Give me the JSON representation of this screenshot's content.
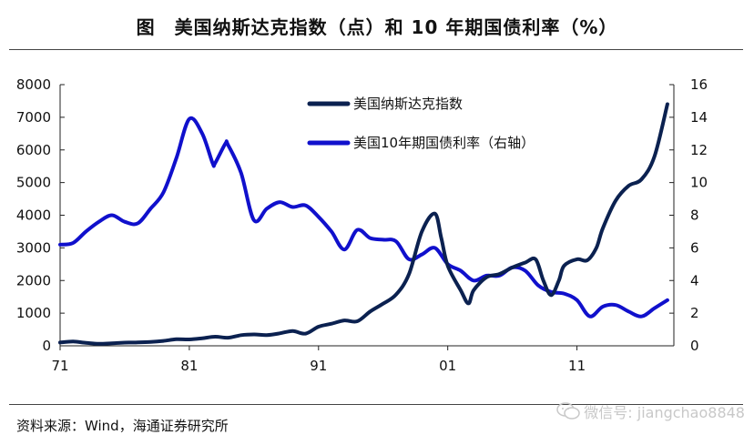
{
  "header": {
    "title": "图　美国纳斯达克指数（点）和 10 年期国债利率（%）"
  },
  "footer": {
    "source": "资料来源：Wind，海通证券研究所",
    "watermark": "微信号: jiangchao8848"
  },
  "colors": {
    "nasdaq": "#0b2150",
    "yield": "#1010cc",
    "axis": "#222222"
  },
  "chart_data": {
    "type": "line",
    "x_ticks": [
      "71",
      "81",
      "91",
      "01",
      "11"
    ],
    "x_range": [
      1971,
      2018.5
    ],
    "y_left": {
      "range": [
        0,
        8000
      ],
      "ticks": [
        "0",
        "1000",
        "2000",
        "3000",
        "4000",
        "5000",
        "6000",
        "7000",
        "8000"
      ]
    },
    "y_right": {
      "range": [
        0,
        16
      ],
      "ticks": [
        "0",
        "2",
        "4",
        "6",
        "8",
        "10",
        "12",
        "14",
        "16"
      ]
    },
    "legend_position": "top-center",
    "series": [
      {
        "name": "美国纳斯达克指数",
        "axis": "left",
        "color": "#0b2150",
        "points": [
          [
            1971,
            100
          ],
          [
            1972,
            130
          ],
          [
            1973,
            92
          ],
          [
            1974,
            60
          ],
          [
            1975,
            78
          ],
          [
            1976,
            97
          ],
          [
            1977,
            105
          ],
          [
            1978,
            118
          ],
          [
            1979,
            150
          ],
          [
            1980,
            200
          ],
          [
            1981,
            195
          ],
          [
            1982,
            232
          ],
          [
            1983,
            279
          ],
          [
            1984,
            247
          ],
          [
            1985,
            325
          ],
          [
            1986,
            349
          ],
          [
            1987,
            330
          ],
          [
            1988,
            381
          ],
          [
            1989,
            454
          ],
          [
            1990,
            374
          ],
          [
            1991,
            586
          ],
          [
            1992,
            677
          ],
          [
            1993,
            777
          ],
          [
            1994,
            752
          ],
          [
            1995,
            1052
          ],
          [
            1996,
            1291
          ],
          [
            1997,
            1570
          ],
          [
            1998,
            2193
          ],
          [
            1999,
            3500
          ],
          [
            2000,
            4050
          ],
          [
            2000.5,
            3300
          ],
          [
            2001,
            2450
          ],
          [
            2002,
            1700
          ],
          [
            2002.6,
            1300
          ],
          [
            2003,
            1700
          ],
          [
            2004,
            2100
          ],
          [
            2005,
            2200
          ],
          [
            2006,
            2400
          ],
          [
            2007,
            2550
          ],
          [
            2007.8,
            2650
          ],
          [
            2008.4,
            2000
          ],
          [
            2009,
            1550
          ],
          [
            2009.6,
            2000
          ],
          [
            2010,
            2450
          ],
          [
            2011,
            2650
          ],
          [
            2011.8,
            2620
          ],
          [
            2012.5,
            3000
          ],
          [
            2013,
            3600
          ],
          [
            2014,
            4450
          ],
          [
            2015,
            4900
          ],
          [
            2016,
            5100
          ],
          [
            2017,
            5800
          ],
          [
            2018,
            7400
          ]
        ]
      },
      {
        "name": "美国10年期国债利率（右轴）",
        "axis": "right",
        "color": "#1010cc",
        "points": [
          [
            1971,
            6.2
          ],
          [
            1972,
            6.3
          ],
          [
            1973,
            7.0
          ],
          [
            1974,
            7.6
          ],
          [
            1975,
            8.0
          ],
          [
            1976,
            7.6
          ],
          [
            1977,
            7.5
          ],
          [
            1978,
            8.4
          ],
          [
            1979,
            9.4
          ],
          [
            1980,
            11.5
          ],
          [
            1981,
            13.9
          ],
          [
            1982,
            13.0
          ],
          [
            1982.8,
            11.2
          ],
          [
            1983,
            11.2
          ],
          [
            1983.8,
            12.4
          ],
          [
            1984,
            12.3
          ],
          [
            1985,
            10.6
          ],
          [
            1986,
            7.7
          ],
          [
            1987,
            8.4
          ],
          [
            1988,
            8.8
          ],
          [
            1989,
            8.5
          ],
          [
            1990,
            8.6
          ],
          [
            1991,
            7.9
          ],
          [
            1992,
            7.0
          ],
          [
            1993,
            5.9
          ],
          [
            1994,
            7.1
          ],
          [
            1995,
            6.6
          ],
          [
            1996,
            6.5
          ],
          [
            1997,
            6.4
          ],
          [
            1998,
            5.3
          ],
          [
            1999,
            5.6
          ],
          [
            2000,
            6.0
          ],
          [
            2001,
            5.0
          ],
          [
            2002,
            4.6
          ],
          [
            2003,
            4.0
          ],
          [
            2004,
            4.3
          ],
          [
            2005,
            4.3
          ],
          [
            2006,
            4.8
          ],
          [
            2007,
            4.6
          ],
          [
            2008,
            3.7
          ],
          [
            2009,
            3.3
          ],
          [
            2010,
            3.2
          ],
          [
            2011,
            2.8
          ],
          [
            2012,
            1.8
          ],
          [
            2013,
            2.4
          ],
          [
            2014,
            2.5
          ],
          [
            2015,
            2.1
          ],
          [
            2016,
            1.8
          ],
          [
            2017,
            2.3
          ],
          [
            2018,
            2.8
          ]
        ]
      }
    ]
  }
}
